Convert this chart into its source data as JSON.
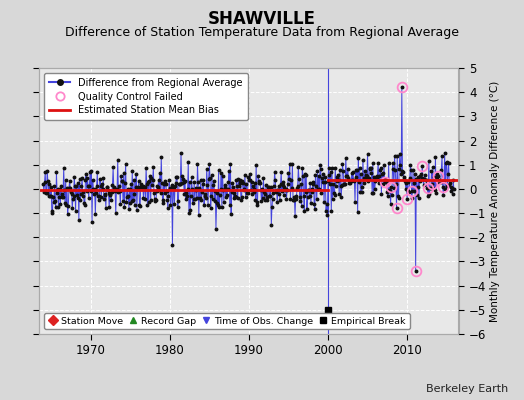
{
  "title": "SHAWVILLE",
  "subtitle": "Difference of Station Temperature Data from Regional Average",
  "ylabel": "Monthly Temperature Anomaly Difference (°C)",
  "xlabel_years": [
    1970,
    1980,
    1990,
    2000,
    2010
  ],
  "ylim": [
    -6,
    5
  ],
  "yticks": [
    -6,
    -5,
    -4,
    -3,
    -2,
    -1,
    0,
    1,
    2,
    3,
    4,
    5
  ],
  "xmin": 1963.5,
  "xmax": 2016.5,
  "background_color": "#d8d8d8",
  "plot_bg_color": "#e8e8e8",
  "grid_color": "#ffffff",
  "line_color": "#4444dd",
  "dot_color": "#111111",
  "bias_color": "#dd1111",
  "qc_color": "#ff88cc",
  "vertical_line_x": 2000,
  "vertical_line_color": "#4444dd",
  "empirical_break_x": 2000,
  "empirical_break_y": -5.0,
  "bias_x_start_1": 1963.5,
  "bias_x_end_1": 2000,
  "bias_y_1": -0.05,
  "bias_x_start_2": 2000,
  "bias_x_end_2": 2016.5,
  "bias_y_2": 0.35,
  "seed": 42,
  "title_fontsize": 12,
  "subtitle_fontsize": 9,
  "label_fontsize": 7.5,
  "tick_fontsize": 8.5,
  "watermark": "Berkeley Earth",
  "watermark_fontsize": 8
}
